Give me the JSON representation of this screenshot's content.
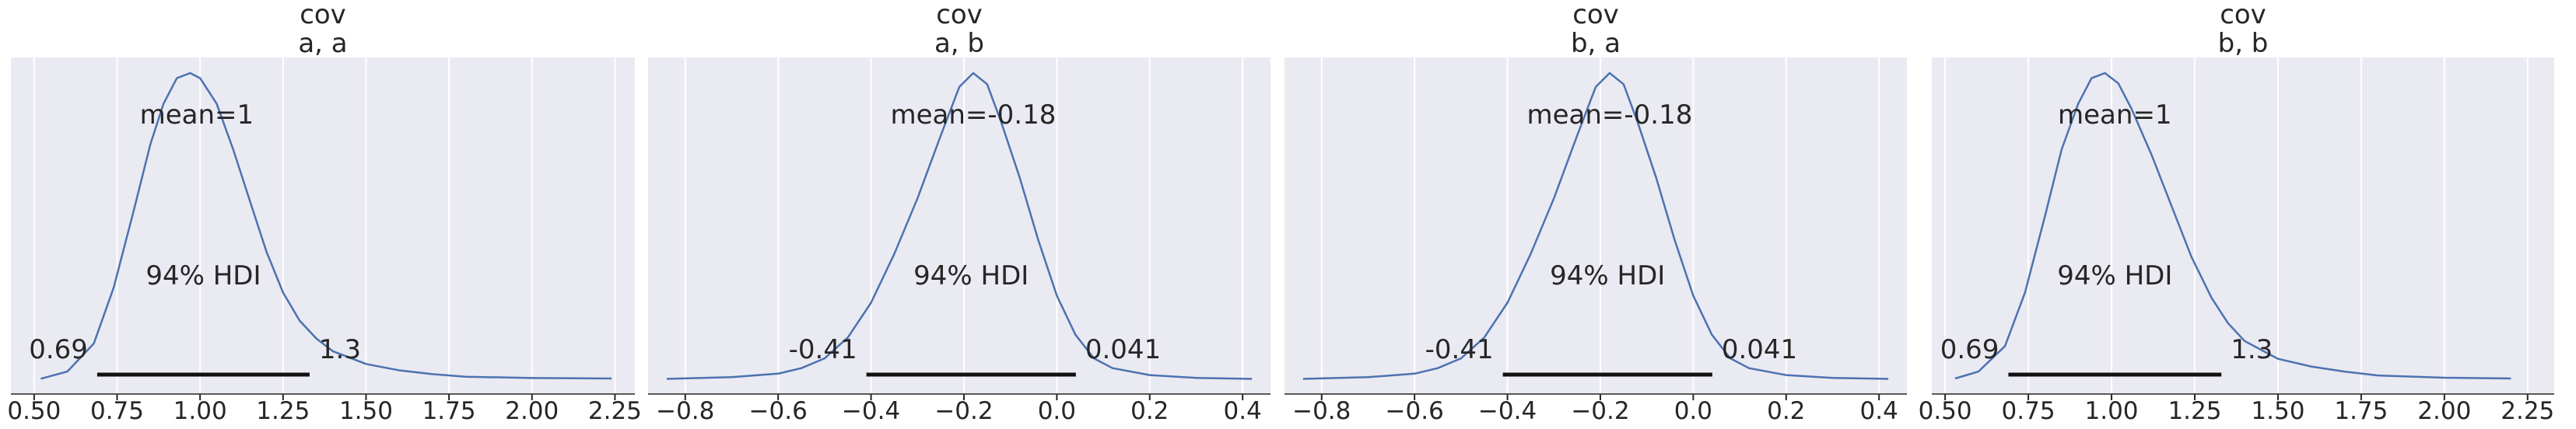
{
  "chart_data": [
    {
      "type": "area",
      "title_line1": "cov",
      "title_line2": "a, a",
      "xlim": [
        0.43,
        2.31
      ],
      "xticks": [
        0.5,
        0.75,
        1.0,
        1.25,
        1.5,
        1.75,
        2.0,
        2.25
      ],
      "xtick_labels": [
        "0.50",
        "0.75",
        "1.00",
        "1.25",
        "1.50",
        "1.75",
        "2.00",
        "2.25"
      ],
      "mean_label": "mean=1",
      "mean_pos": [
        0.99,
        1.65
      ],
      "hdi_label": "94% HDI",
      "hdi_low": 0.69,
      "hdi_high": 1.33,
      "hdi_low_label": "0.69",
      "hdi_high_label": "1.3",
      "density": {
        "x": [
          0.52,
          0.6,
          0.68,
          0.74,
          0.8,
          0.85,
          0.89,
          0.93,
          0.97,
          1.0,
          1.05,
          1.1,
          1.15,
          1.2,
          1.25,
          1.3,
          1.35,
          1.4,
          1.5,
          1.6,
          1.7,
          1.8,
          2.0,
          2.24
        ],
        "y": [
          0.002,
          0.03,
          0.14,
          0.36,
          0.66,
          0.92,
          1.08,
          1.18,
          1.2,
          1.18,
          1.08,
          0.9,
          0.7,
          0.5,
          0.34,
          0.23,
          0.16,
          0.11,
          0.06,
          0.035,
          0.02,
          0.01,
          0.005,
          0.003
        ]
      }
    },
    {
      "type": "area",
      "title_line1": "cov",
      "title_line2": "a, b",
      "xlim": [
        -0.88,
        0.46
      ],
      "xticks": [
        -0.8,
        -0.6,
        -0.4,
        -0.2,
        0.0,
        0.2,
        0.4
      ],
      "xtick_labels": [
        "−0.8",
        "−0.6",
        "−0.4",
        "−0.2",
        "0.0",
        "0.2",
        "0.4"
      ],
      "mean_label": "mean=-0.18",
      "mean_pos": [
        -0.18,
        1.65
      ],
      "hdi_label": "94% HDI",
      "hdi_low": -0.41,
      "hdi_high": 0.041,
      "hdi_low_label": "-0.41",
      "hdi_high_label": "0.041",
      "density": {
        "x": [
          -0.84,
          -0.7,
          -0.6,
          -0.55,
          -0.5,
          -0.45,
          -0.4,
          -0.35,
          -0.3,
          -0.25,
          -0.21,
          -0.18,
          -0.15,
          -0.12,
          -0.08,
          -0.04,
          0.0,
          0.04,
          0.08,
          0.12,
          0.2,
          0.3,
          0.42
        ],
        "y": [
          0.003,
          0.015,
          0.04,
          0.08,
          0.15,
          0.3,
          0.55,
          0.9,
          1.3,
          1.75,
          2.1,
          2.2,
          2.12,
          1.85,
          1.45,
          1.0,
          0.6,
          0.32,
          0.15,
          0.08,
          0.03,
          0.01,
          0.003
        ]
      }
    },
    {
      "type": "area",
      "title_line1": "cov",
      "title_line2": "b, a",
      "xlim": [
        -0.88,
        0.46
      ],
      "xticks": [
        -0.8,
        -0.6,
        -0.4,
        -0.2,
        0.0,
        0.2,
        0.4
      ],
      "xtick_labels": [
        "−0.8",
        "−0.6",
        "−0.4",
        "−0.2",
        "0.0",
        "0.2",
        "0.4"
      ],
      "mean_label": "mean=-0.18",
      "mean_pos": [
        -0.18,
        1.65
      ],
      "hdi_label": "94% HDI",
      "hdi_low": -0.41,
      "hdi_high": 0.041,
      "hdi_low_label": "-0.41",
      "hdi_high_label": "0.041",
      "density": {
        "x": [
          -0.84,
          -0.7,
          -0.6,
          -0.55,
          -0.5,
          -0.45,
          -0.4,
          -0.35,
          -0.3,
          -0.25,
          -0.21,
          -0.18,
          -0.15,
          -0.12,
          -0.08,
          -0.04,
          0.0,
          0.04,
          0.08,
          0.12,
          0.2,
          0.3,
          0.42
        ],
        "y": [
          0.003,
          0.015,
          0.04,
          0.08,
          0.15,
          0.3,
          0.55,
          0.9,
          1.3,
          1.75,
          2.1,
          2.2,
          2.12,
          1.85,
          1.45,
          1.0,
          0.6,
          0.32,
          0.15,
          0.08,
          0.03,
          0.01,
          0.003
        ]
      }
    },
    {
      "type": "area",
      "title_line1": "cov",
      "title_line2": "b, b",
      "xlim": [
        0.46,
        2.33
      ],
      "xticks": [
        0.5,
        0.75,
        1.0,
        1.25,
        1.5,
        1.75,
        2.0,
        2.25
      ],
      "xtick_labels": [
        "0.50",
        "0.75",
        "1.00",
        "1.25",
        "1.50",
        "1.75",
        "2.00",
        "2.25"
      ],
      "mean_label": "mean=1",
      "mean_pos": [
        1.01,
        1.65
      ],
      "hdi_label": "94% HDI",
      "hdi_low": 0.69,
      "hdi_high": 1.33,
      "hdi_low_label": "0.69",
      "hdi_high_label": "1.3",
      "density": {
        "x": [
          0.53,
          0.6,
          0.68,
          0.74,
          0.8,
          0.85,
          0.9,
          0.94,
          0.98,
          1.02,
          1.06,
          1.12,
          1.18,
          1.24,
          1.3,
          1.35,
          1.4,
          1.5,
          1.6,
          1.7,
          1.8,
          2.0,
          2.2
        ],
        "y": [
          0.003,
          0.03,
          0.13,
          0.34,
          0.64,
          0.9,
          1.08,
          1.18,
          1.2,
          1.16,
          1.06,
          0.88,
          0.68,
          0.48,
          0.32,
          0.22,
          0.15,
          0.08,
          0.05,
          0.03,
          0.015,
          0.006,
          0.003
        ]
      }
    }
  ]
}
